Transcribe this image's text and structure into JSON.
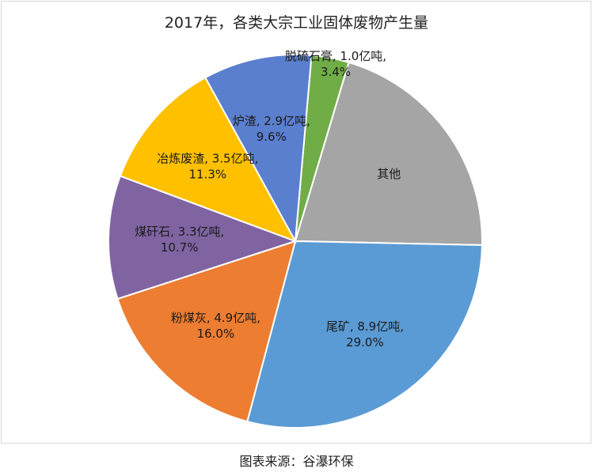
{
  "chart_data": {
    "type": "pie",
    "title": "2017年，各类大宗工业固体废物产生量",
    "slices": [
      {
        "name": "脱硫石膏",
        "value": 1.0,
        "unit": "亿吨",
        "percent": "3.4%",
        "label_line1": "脱硫石膏, 1.0亿吨,",
        "label_line2": "3.4%",
        "color": "#70ad47"
      },
      {
        "name": "其他",
        "value": 6.4,
        "unit": "",
        "percent": "",
        "label_line1": "其他",
        "label_line2": "",
        "color": "#a5a5a5"
      },
      {
        "name": "尾矿",
        "value": 8.9,
        "unit": "亿吨",
        "percent": "29.0%",
        "label_line1": "尾矿, 8.9亿吨,",
        "label_line2": "29.0%",
        "color": "#5b9bd5"
      },
      {
        "name": "粉煤灰",
        "value": 4.9,
        "unit": "亿吨",
        "percent": "16.0%",
        "label_line1": "粉煤灰, 4.9亿吨,",
        "label_line2": "16.0%",
        "color": "#ed7d31"
      },
      {
        "name": "煤矸石",
        "value": 3.3,
        "unit": "亿吨",
        "percent": "10.7%",
        "label_line1": "煤矸石, 3.3亿吨,",
        "label_line2": "10.7%",
        "color": "#8064a2"
      },
      {
        "name": "冶炼废渣",
        "value": 3.5,
        "unit": "亿吨",
        "percent": "11.3%",
        "label_line1": "冶炼废渣, 3.5亿吨,",
        "label_line2": "11.3%",
        "color": "#ffc000"
      },
      {
        "name": "炉渣",
        "value": 2.9,
        "unit": "亿吨",
        "percent": "9.6%",
        "label_line1": "炉渣, 2.9亿吨,",
        "label_line2": "9.6%",
        "color": "#5b7fcf"
      }
    ],
    "start_angle_deg": 85
  },
  "source": "图表来源：谷瀑环保"
}
